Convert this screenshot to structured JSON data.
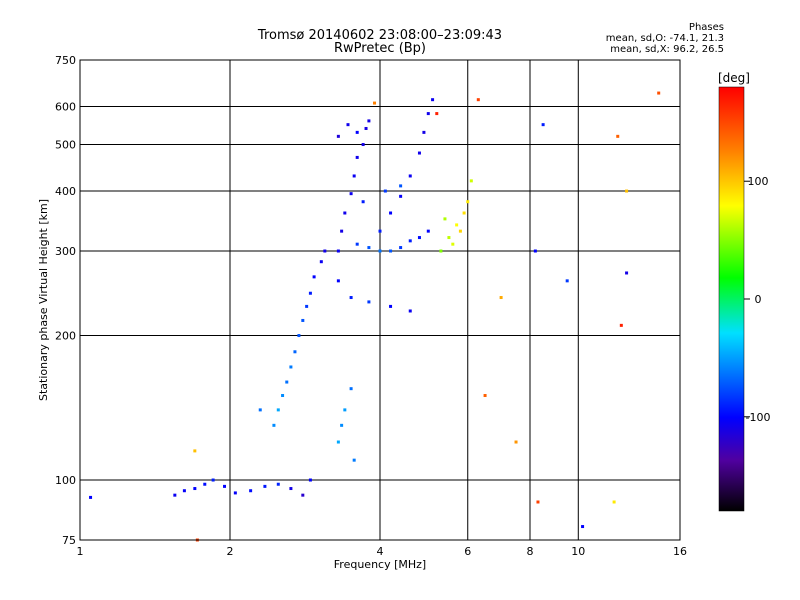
{
  "title_line1": "Tromsø 20140602 23:08:00–23:09:43",
  "title_line2": "RwPretec (Bp)",
  "stats": {
    "heading": "Phases",
    "line_o": "mean, sd,O: -74.1, 21.3",
    "line_x": "mean, sd,X: 96.2, 26.5"
  },
  "colors": {
    "grid": "#000000",
    "axis": "#000000"
  },
  "chart_data": {
    "type": "scatter",
    "xlabel": "Frequency [MHz]",
    "ylabel": "Stationary phase Virtual Height [km]",
    "xscale": "log",
    "yscale": "log",
    "xlim": [
      1,
      16
    ],
    "ylim": [
      75,
      750
    ],
    "xticks": [
      1,
      2,
      4,
      6,
      8,
      10,
      16
    ],
    "yticks": [
      75,
      100,
      200,
      300,
      400,
      500,
      600,
      750
    ],
    "xgrid": [
      2,
      4,
      6,
      8,
      10
    ],
    "ygrid": [
      100,
      200,
      300,
      400,
      500,
      600
    ],
    "grid": true,
    "colorbar": {
      "label": "[deg]",
      "range": [
        -180,
        180
      ],
      "ticks": [
        100,
        0,
        -100
      ],
      "colormap": "rainbow"
    },
    "series": [
      {
        "values": [
          [
            1.05,
            92,
            -110
          ],
          [
            1.55,
            93,
            -115
          ],
          [
            1.62,
            95,
            -112
          ],
          [
            1.7,
            96,
            -110
          ],
          [
            1.78,
            98,
            -108
          ],
          [
            1.85,
            100,
            -105
          ],
          [
            1.95,
            97,
            -110
          ],
          [
            2.05,
            94,
            -112
          ],
          [
            2.2,
            95,
            -108
          ],
          [
            2.35,
            97,
            -106
          ],
          [
            2.5,
            98,
            -104
          ],
          [
            2.65,
            96,
            -120
          ],
          [
            2.8,
            93,
            -130
          ],
          [
            2.9,
            100,
            -110
          ],
          [
            2.45,
            130,
            -85
          ],
          [
            2.5,
            140,
            -80
          ],
          [
            2.55,
            150,
            -85
          ],
          [
            2.6,
            160,
            -90
          ],
          [
            2.65,
            172,
            -88
          ],
          [
            2.7,
            185,
            -92
          ],
          [
            2.75,
            200,
            -95
          ],
          [
            2.8,
            215,
            -95
          ],
          [
            2.85,
            230,
            -100
          ],
          [
            2.9,
            245,
            -105
          ],
          [
            2.95,
            265,
            -110
          ],
          [
            3.05,
            285,
            -115
          ],
          [
            3.1,
            300,
            -118
          ],
          [
            3.3,
            300,
            -115
          ],
          [
            3.35,
            330,
            -120
          ],
          [
            3.4,
            360,
            -118
          ],
          [
            3.5,
            395,
            -116
          ],
          [
            3.55,
            430,
            -115
          ],
          [
            3.6,
            470,
            -118
          ],
          [
            3.7,
            500,
            -120
          ],
          [
            3.75,
            540,
            -122
          ],
          [
            3.8,
            560,
            -120
          ],
          [
            3.3,
            520,
            -125
          ],
          [
            3.45,
            550,
            -118
          ],
          [
            3.6,
            530,
            -110
          ],
          [
            3.6,
            310,
            -100
          ],
          [
            3.8,
            305,
            -95
          ],
          [
            4.0,
            300,
            -90
          ],
          [
            4.2,
            300,
            -95
          ],
          [
            4.4,
            305,
            -100
          ],
          [
            4.6,
            315,
            -105
          ],
          [
            4.8,
            320,
            -108
          ],
          [
            5.0,
            330,
            -110
          ],
          [
            4.0,
            330,
            -105
          ],
          [
            4.2,
            360,
            -110
          ],
          [
            4.4,
            390,
            -112
          ],
          [
            4.6,
            430,
            -115
          ],
          [
            4.8,
            480,
            -118
          ],
          [
            4.9,
            530,
            -120
          ],
          [
            5.0,
            580,
            -118
          ],
          [
            5.1,
            620,
            -115
          ],
          [
            3.7,
            380,
            -105
          ],
          [
            4.1,
            400,
            -100
          ],
          [
            4.4,
            410,
            -95
          ],
          [
            3.3,
            260,
            -110
          ],
          [
            3.5,
            240,
            -105
          ],
          [
            3.8,
            235,
            -100
          ],
          [
            4.2,
            230,
            -110
          ],
          [
            4.6,
            225,
            -115
          ],
          [
            5.3,
            300,
            40
          ],
          [
            5.5,
            320,
            60
          ],
          [
            5.7,
            340,
            80
          ],
          [
            5.9,
            360,
            95
          ],
          [
            6.0,
            380,
            90
          ],
          [
            5.6,
            310,
            70
          ],
          [
            5.8,
            330,
            100
          ],
          [
            5.4,
            350,
            55
          ],
          [
            6.1,
            420,
            65
          ],
          [
            3.3,
            120,
            -80
          ],
          [
            3.35,
            130,
            -85
          ],
          [
            3.4,
            140,
            -82
          ],
          [
            3.5,
            155,
            -90
          ],
          [
            3.55,
            110,
            -88
          ],
          [
            6.3,
            620,
            160
          ],
          [
            5.2,
            580,
            170
          ],
          [
            3.9,
            610,
            140
          ],
          [
            12.0,
            520,
            150
          ],
          [
            12.5,
            400,
            110
          ],
          [
            14.5,
            640,
            155
          ],
          [
            12.2,
            210,
            170
          ],
          [
            6.5,
            150,
            150
          ],
          [
            7.5,
            120,
            130
          ],
          [
            11.8,
            90,
            90
          ],
          [
            10.2,
            80,
            -110
          ],
          [
            8.5,
            550,
            -105
          ],
          [
            8.2,
            300,
            -110
          ],
          [
            9.5,
            260,
            -100
          ],
          [
            12.5,
            270,
            -120
          ],
          [
            1.7,
            115,
            110
          ],
          [
            1.72,
            75,
            160
          ],
          [
            2.3,
            140,
            -90
          ],
          [
            7.0,
            240,
            120
          ],
          [
            8.3,
            90,
            160
          ]
        ]
      }
    ]
  }
}
